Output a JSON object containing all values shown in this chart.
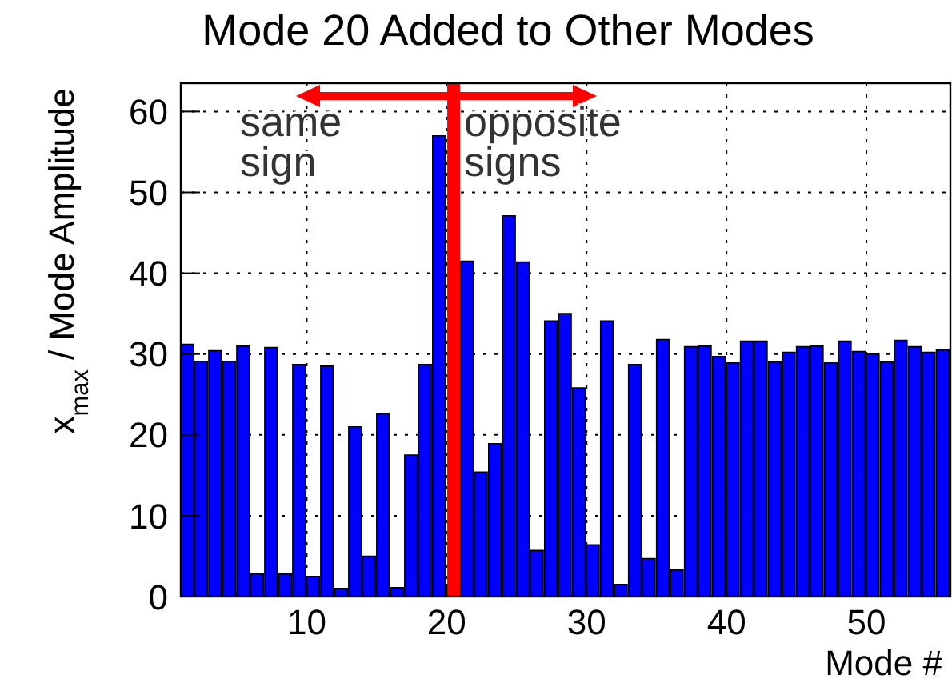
{
  "chart_data": {
    "type": "histogram",
    "title": "Mode 20 Added to Other Modes",
    "xlabel": "Mode #",
    "ylabel": "x$_{max}$ / Mode Amplitude",
    "bins": [
      1,
      2,
      3,
      4,
      5,
      6,
      7,
      8,
      9,
      10,
      11,
      12,
      13,
      14,
      15,
      16,
      17,
      18,
      19,
      20,
      21,
      22,
      23,
      24,
      25,
      26,
      27,
      28,
      29,
      30,
      31,
      32,
      33,
      34,
      35,
      36,
      37,
      38,
      39,
      40,
      41,
      42,
      43,
      44,
      45,
      46,
      47,
      48,
      49,
      50,
      51,
      52,
      53,
      54,
      55,
      56
    ],
    "values": [
      31.2,
      29.1,
      30.4,
      29.1,
      31.0,
      2.8,
      30.8,
      2.8,
      28.7,
      2.5,
      28.5,
      1.0,
      21.0,
      5.0,
      22.6,
      1.1,
      17.5,
      28.7,
      57.0,
      null,
      41.5,
      15.4,
      18.9,
      47.1,
      41.4,
      5.7,
      34.1,
      35.0,
      25.8,
      6.4,
      34.1,
      1.5,
      28.7,
      4.7,
      31.8,
      3.3,
      30.9,
      31.0,
      29.7,
      28.9,
      31.6,
      31.6,
      29.0,
      30.2,
      30.9,
      31.0,
      28.9,
      31.6,
      30.3,
      30.0,
      29.0,
      31.7,
      30.9,
      30.2,
      30.5
    ],
    "color": "#0000ff",
    "xlim": [
      1,
      56
    ],
    "xticks": [
      10,
      20,
      30,
      40,
      50
    ],
    "ylim": [
      0,
      63.5
    ],
    "yticks": [
      0,
      10,
      20,
      30,
      40,
      50,
      60
    ],
    "grid": true,
    "ref_lines": [
      {
        "axis": "x",
        "value": 20.5,
        "color": "#ff0000"
      }
    ],
    "annotations": [
      "same\nsign",
      "opposite\nsigns"
    ]
  }
}
